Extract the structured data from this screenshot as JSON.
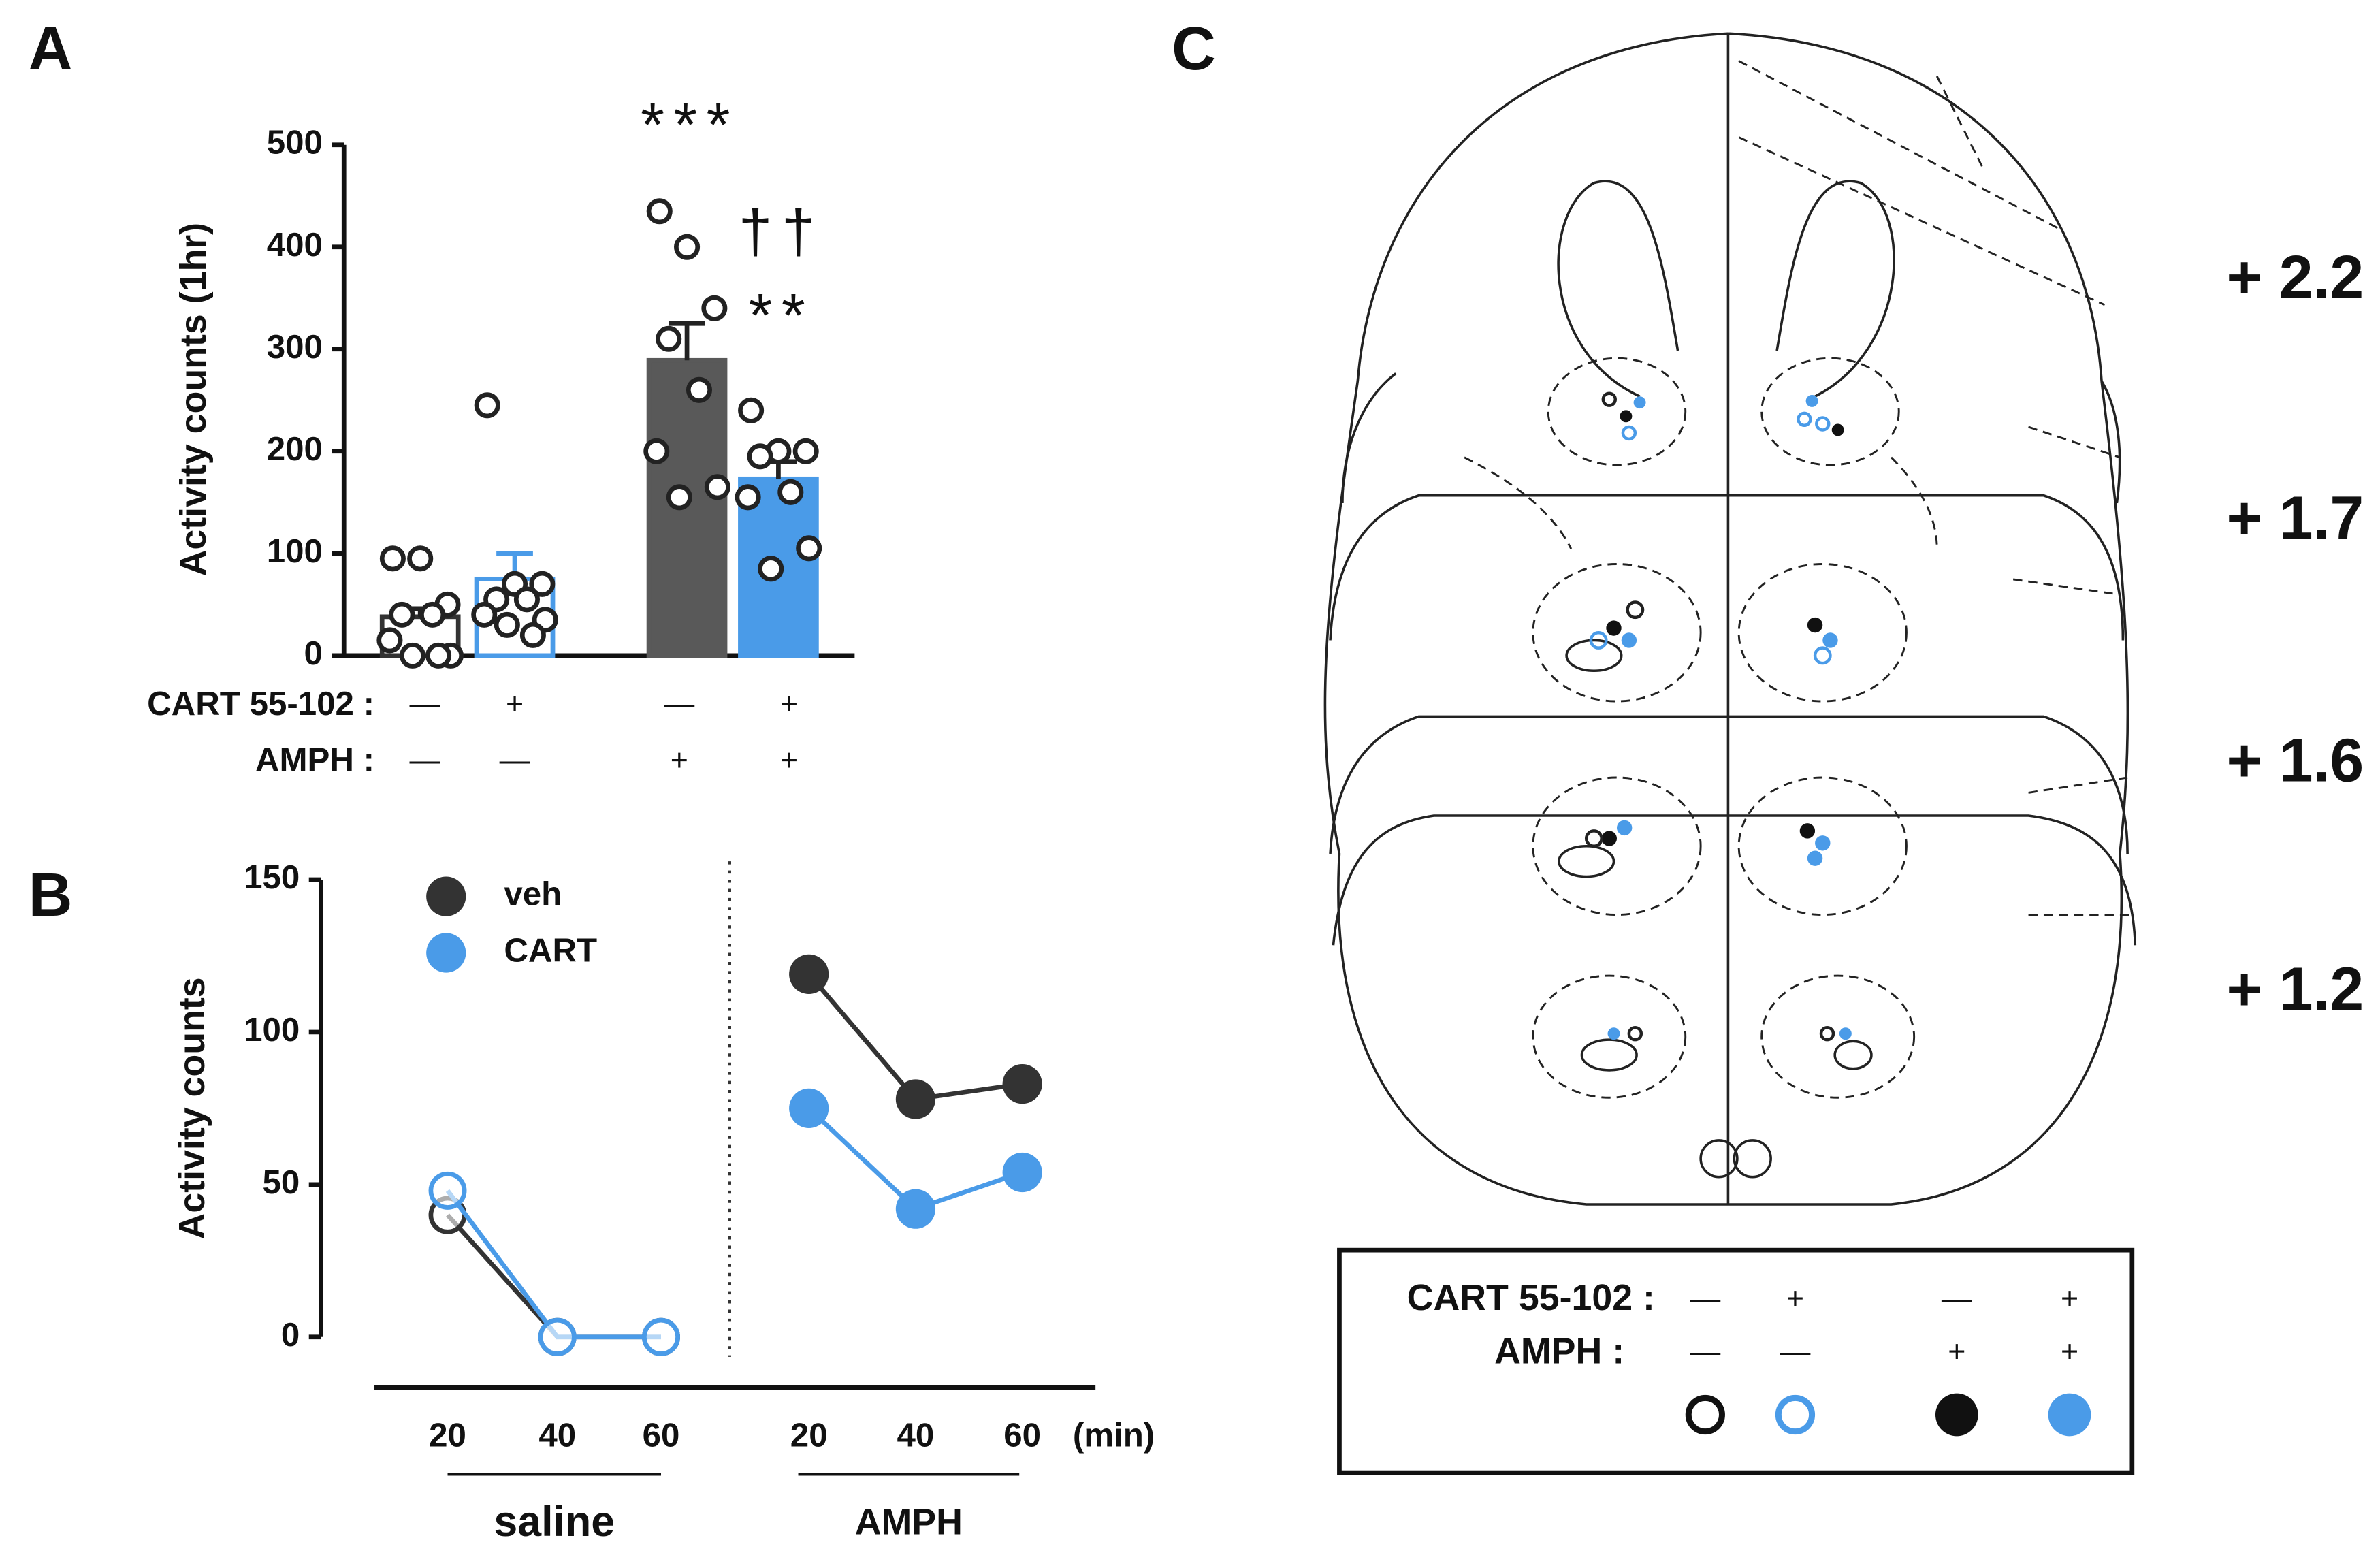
{
  "panel_labels": [
    "A",
    "B",
    "C"
  ],
  "chart_data": [
    {
      "type": "bar",
      "ylabel": "Activity counts (1hr)",
      "ylim": [
        0,
        500
      ],
      "yticks": [
        0,
        100,
        200,
        300,
        400,
        500
      ],
      "values": [
        38,
        75,
        289,
        173
      ],
      "errors": [
        8,
        25,
        36,
        17
      ],
      "colors": [
        "#ffffff",
        "#ffffff",
        "#595959",
        "#4a9be8"
      ],
      "edge_colors": [
        "#333333",
        "#4a9be8",
        "#595959",
        "#4a9be8"
      ],
      "points": [
        [
          95,
          95,
          50,
          40,
          40,
          15,
          0,
          0,
          0
        ],
        [
          245,
          70,
          70,
          55,
          55,
          40,
          35,
          30,
          20
        ],
        [
          435,
          400,
          340,
          310,
          260,
          200,
          165,
          155
        ],
        [
          240,
          200,
          200,
          195,
          160,
          155,
          105,
          85
        ]
      ],
      "condition_rows": [
        {
          "label": "CART 55-102 :",
          "marks": [
            "—",
            "+",
            "—",
            "+"
          ]
        },
        {
          "label": "AMPH :",
          "marks": [
            "—",
            "—",
            "+",
            "+"
          ]
        }
      ],
      "annotations": [
        {
          "text": "***",
          "bar": 2
        },
        {
          "text": "††",
          "bar": 3
        },
        {
          "text": "**",
          "bar": 3
        }
      ]
    },
    {
      "type": "line",
      "ylabel": "Activity counts",
      "ylim": [
        0,
        150
      ],
      "yticks": [
        0,
        50,
        100,
        150
      ],
      "x_unit": "(min)",
      "groups": [
        {
          "label": "saline",
          "categories": [
            "20",
            "40",
            "60"
          ]
        },
        {
          "label": "AMPH",
          "categories": [
            "20",
            "40",
            "60"
          ]
        }
      ],
      "series": [
        {
          "name": "veh",
          "color": "#333333",
          "values": [
            [
              40,
              0,
              0
            ],
            [
              119,
              78,
              83
            ]
          ]
        },
        {
          "name": "CART",
          "color": "#4a9be8",
          "values": [
            [
              48,
              0,
              0
            ],
            [
              75,
              42,
              54
            ]
          ]
        }
      ]
    }
  ],
  "atlas": {
    "levels": [
      "+ 2.2",
      "+ 1.7",
      "+ 1.6",
      "+ 1.2"
    ],
    "legend_rows": [
      {
        "label": "CART 55-102 :",
        "marks": [
          "—",
          "+",
          "—",
          "+"
        ]
      },
      {
        "label": "AMPH :",
        "marks": [
          "—",
          "—",
          "+",
          "+"
        ]
      }
    ]
  }
}
